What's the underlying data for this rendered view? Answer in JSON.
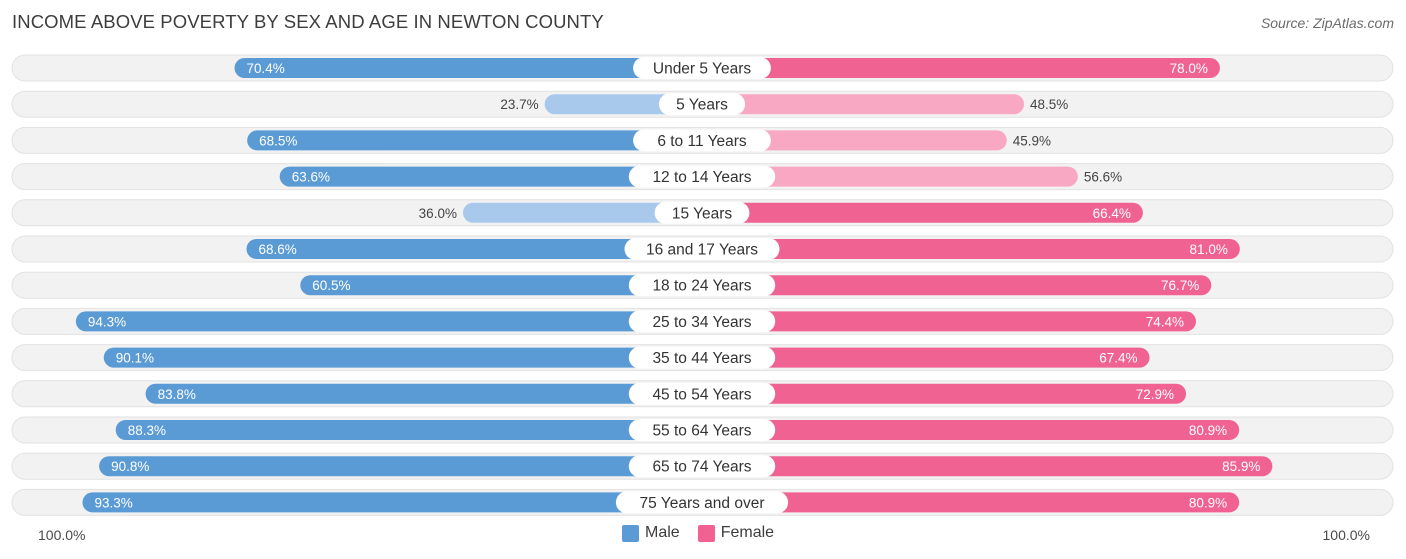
{
  "chart_data": {
    "type": "bar",
    "orientation": "diverging-horizontal",
    "title": "INCOME ABOVE POVERTY BY SEX AND AGE IN NEWTON COUNTY",
    "source": "Source: ZipAtlas.com",
    "categories": [
      "Under 5 Years",
      "5 Years",
      "6 to 11 Years",
      "12 to 14 Years",
      "15 Years",
      "16 and 17 Years",
      "18 to 24 Years",
      "25 to 34 Years",
      "35 to 44 Years",
      "45 to 54 Years",
      "55 to 64 Years",
      "65 to 74 Years",
      "75 Years and over"
    ],
    "series": [
      {
        "name": "Male",
        "values": [
          70.4,
          23.7,
          68.5,
          63.6,
          36.0,
          68.6,
          60.5,
          94.3,
          90.1,
          83.8,
          88.3,
          90.8,
          93.3
        ],
        "labels": [
          "70.4%",
          "23.7%",
          "68.5%",
          "63.6%",
          "36.0%",
          "68.6%",
          "60.5%",
          "94.3%",
          "90.1%",
          "83.8%",
          "88.3%",
          "90.8%",
          "93.3%"
        ]
      },
      {
        "name": "Female",
        "values": [
          78.0,
          48.5,
          45.9,
          56.6,
          66.4,
          81.0,
          76.7,
          74.4,
          67.4,
          72.9,
          80.9,
          85.9,
          80.9
        ],
        "labels": [
          "78.0%",
          "48.5%",
          "45.9%",
          "56.6%",
          "66.4%",
          "81.0%",
          "76.7%",
          "74.4%",
          "67.4%",
          "72.9%",
          "80.9%",
          "85.9%",
          "80.9%"
        ]
      }
    ],
    "xlim": [
      0,
      100
    ],
    "axis_left_label": "100.0%",
    "axis_right_label": "100.0%",
    "legend": [
      {
        "label": "Male",
        "color": "#5b9bd5"
      },
      {
        "label": "Female",
        "color": "#f06292"
      }
    ],
    "colors": {
      "male_strong": "#5b9bd5",
      "male_light": "#a9c9ec",
      "female_strong": "#f06292",
      "female_light": "#f8a8c2",
      "track": "#efefef"
    }
  }
}
